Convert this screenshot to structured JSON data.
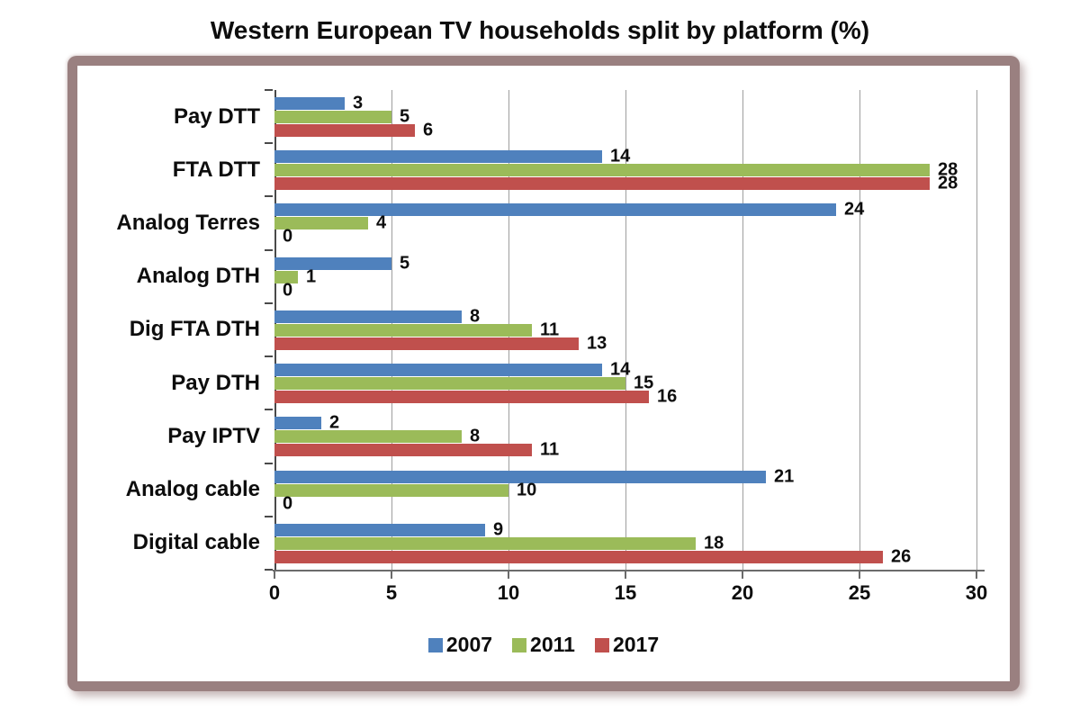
{
  "chart_data": {
    "type": "bar",
    "orientation": "horizontal",
    "title": "Western European TV households split by platform (%)",
    "xlabel": "",
    "ylabel": "",
    "xlim": [
      0,
      30
    ],
    "x_ticks": [
      0,
      5,
      10,
      15,
      20,
      25,
      30
    ],
    "grid": true,
    "data_labels": true,
    "legend_position": "bottom",
    "categories": [
      "Pay DTT",
      "FTA DTT",
      "Analog Terres",
      "Analog DTH",
      "Dig FTA DTH",
      "Pay DTH",
      "Pay IPTV",
      "Analog cable",
      "Digital cable"
    ],
    "series": [
      {
        "name": "2007",
        "color": "#4F81BD",
        "values": [
          3,
          14,
          24,
          5,
          8,
          14,
          2,
          21,
          9
        ]
      },
      {
        "name": "2011",
        "color": "#9BBB59",
        "values": [
          5,
          28,
          4,
          1,
          11,
          15,
          8,
          10,
          18
        ]
      },
      {
        "name": "2017",
        "color": "#C0504D",
        "values": [
          6,
          28,
          0,
          0,
          13,
          16,
          11,
          0,
          26
        ]
      }
    ]
  },
  "colors": {
    "grid": "#9E9E9E",
    "axis": "#4A4A4A",
    "x_axis": "#6B6B6B",
    "text": "#0D0D0D",
    "frame_border": "#9A8080",
    "background": "#FFFFFF"
  }
}
